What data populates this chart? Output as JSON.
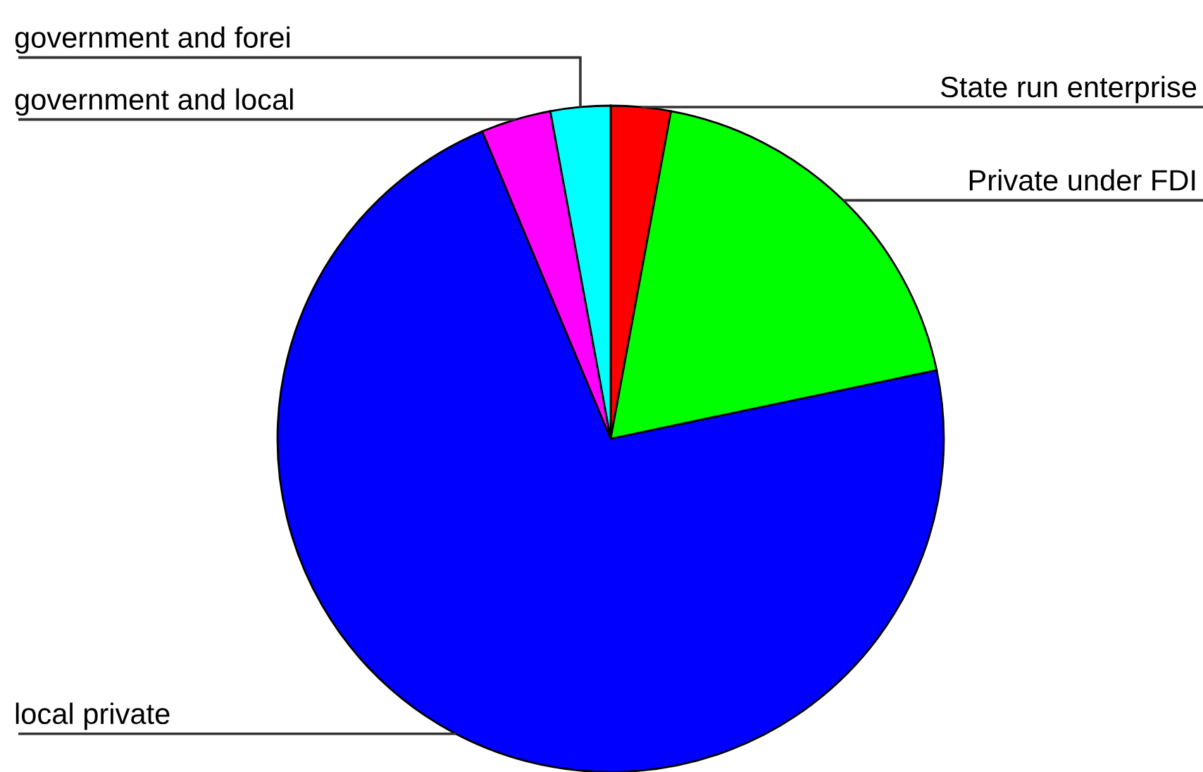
{
  "chart_data": {
    "type": "pie",
    "categories": [
      "State run enterprise",
      "Private under FDI",
      "local private",
      "government and local",
      "government and forei"
    ],
    "values": [
      2.9,
      18.8,
      72.0,
      3.4,
      2.9
    ],
    "colors": [
      "#ff0000",
      "#00ff00",
      "#0000ff",
      "#ff00ff",
      "#00ffff"
    ]
  }
}
